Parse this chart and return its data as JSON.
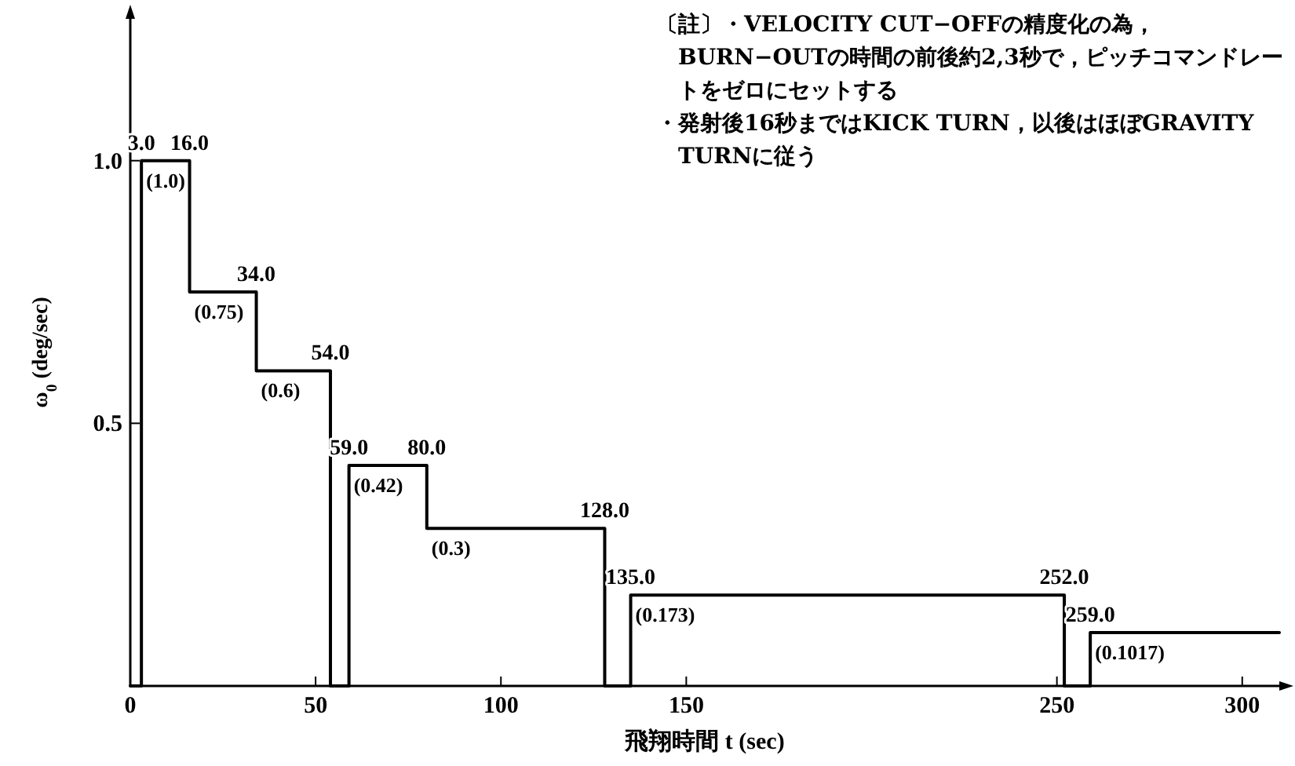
{
  "chart_data": {
    "type": "step",
    "xlabel": "飛翔時間 t (sec)",
    "ylabel": "ω$_{0}$ (deg/sec)",
    "x": [
      0,
      3,
      16,
      34,
      54,
      59,
      80,
      128,
      135,
      252,
      259,
      310
    ],
    "series": [
      {
        "color": "#000000",
        "values": [
          0,
          1.0,
          0.75,
          0.6,
          0,
          0.42,
          0.3,
          0,
          0.173,
          0,
          0.1017,
          0.1017
        ],
        "value_labels": [
          null,
          "(1.0)",
          "(0.75)",
          "(0.6)",
          null,
          "(0.42)",
          "(0.3)",
          null,
          "(0.173)",
          null,
          "(0.1017)",
          null
        ]
      }
    ],
    "xlim": [
      0,
      310
    ],
    "ylim": [
      0,
      1.27
    ],
    "xticks": [
      0,
      50,
      100,
      150,
      250,
      300
    ],
    "yticks": [
      {
        "value": 0.5,
        "label": "0.5"
      },
      {
        "value": 1.0,
        "label": "1.0"
      }
    ],
    "grid": false,
    "marker": "none",
    "line_style": "solid",
    "annotations": [
      "〔註〕・VELOCITY CUT−OFFの精度化の為，BURN−OUTの時間の前後約2,3秒で，ピッチコマンドレートをゼロにセットする",
      "・発射後16秒まではKICK TURN，以後はほぼGRAVITY TURNに従う",
      {
        "text": "3.0",
        "x": 3,
        "y": 1.0
      },
      {
        "text": "16.0",
        "x": 16,
        "y": 1.0
      },
      {
        "text": "34.0",
        "x": 34,
        "y": 0.75
      },
      {
        "text": "54.0",
        "x": 54,
        "y": 0.6
      },
      {
        "text": "59.0",
        "x": 59,
        "y": 0.42
      },
      {
        "text": "80.0",
        "x": 80,
        "y": 0.42
      },
      {
        "text": "128.0",
        "x": 128,
        "y": 0.3
      },
      {
        "text": "135.0",
        "x": 135,
        "y": 0.173
      },
      {
        "text": "252.0",
        "x": 252,
        "y": 0.173
      },
      {
        "text": "259.0",
        "x": 259,
        "y": 0.1017
      }
    ]
  }
}
